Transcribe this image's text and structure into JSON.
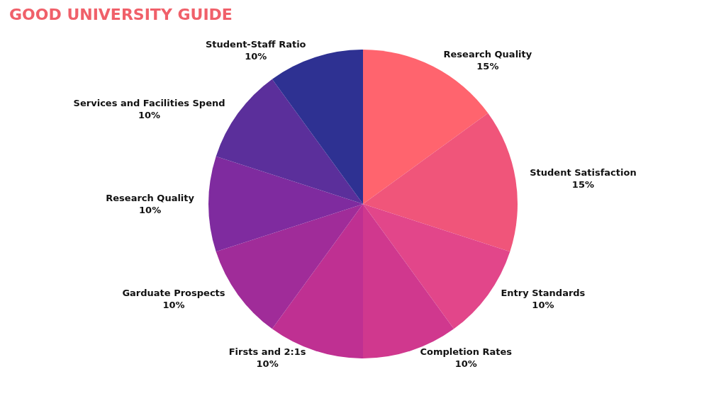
{
  "chart_data": {
    "type": "pie",
    "title": "GOOD UNIVERSITY GUIDE",
    "categories": [
      "Research Quality",
      "Student Satisfaction",
      "Entry Standards",
      "Completion Rates",
      "Firsts and 2:1s",
      "Garduate Prospects",
      "Research Quality",
      "Services and Facilities Spend",
      "Student-Staff Ratio"
    ],
    "values": [
      15,
      15,
      10,
      10,
      10,
      10,
      10,
      10,
      10
    ],
    "value_labels": [
      "15%",
      "15%",
      "10%",
      "10%",
      "10%",
      "10%",
      "10%",
      "10%",
      "10%"
    ],
    "colors": [
      "#ff646e",
      "#f0557a",
      "#e2468a",
      "#d0388e",
      "#bf3092",
      "#a02c99",
      "#7f2b9f",
      "#5b2f9b",
      "#2e3192"
    ],
    "legend": false
  }
}
